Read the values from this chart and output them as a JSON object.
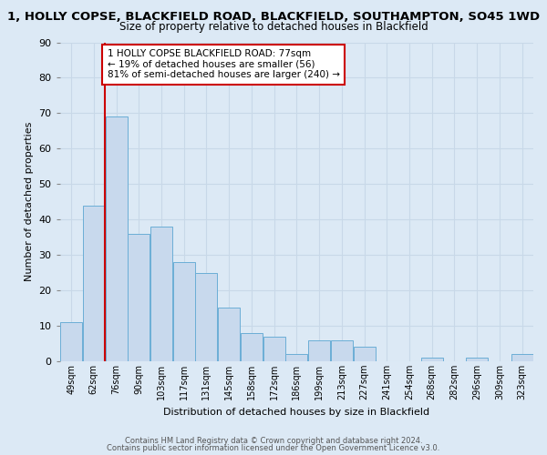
{
  "title": "1, HOLLY COPSE, BLACKFIELD ROAD, BLACKFIELD, SOUTHAMPTON, SO45 1WD",
  "subtitle": "Size of property relative to detached houses in Blackfield",
  "xlabel": "Distribution of detached houses by size in Blackfield",
  "ylabel": "Number of detached properties",
  "bin_labels": [
    "49sqm",
    "62sqm",
    "76sqm",
    "90sqm",
    "103sqm",
    "117sqm",
    "131sqm",
    "145sqm",
    "158sqm",
    "172sqm",
    "186sqm",
    "199sqm",
    "213sqm",
    "227sqm",
    "241sqm",
    "254sqm",
    "268sqm",
    "282sqm",
    "296sqm",
    "309sqm",
    "323sqm"
  ],
  "bar_heights": [
    11,
    44,
    69,
    36,
    38,
    28,
    25,
    15,
    8,
    7,
    2,
    6,
    6,
    4,
    0,
    0,
    1,
    0,
    1,
    0,
    2
  ],
  "bar_color": "#c8d9ed",
  "bar_edge_color": "#6baed6",
  "ylim": [
    0,
    90
  ],
  "yticks": [
    0,
    10,
    20,
    30,
    40,
    50,
    60,
    70,
    80,
    90
  ],
  "red_line_index": 2,
  "annotation_text": "1 HOLLY COPSE BLACKFIELD ROAD: 77sqm\n← 19% of detached houses are smaller (56)\n81% of semi-detached houses are larger (240) →",
  "annotation_box_color": "#ffffff",
  "annotation_box_edge_color": "#cc0000",
  "red_line_color": "#cc0000",
  "grid_color": "#c8d8e8",
  "plot_bg_color": "#dce9f5",
  "fig_bg_color": "#dce9f5",
  "footer_line1": "Contains HM Land Registry data © Crown copyright and database right 2024.",
  "footer_line2": "Contains public sector information licensed under the Open Government Licence v3.0.",
  "title_fontsize": 9.5,
  "subtitle_fontsize": 8.5,
  "axis_label_fontsize": 8,
  "tick_fontsize": 7,
  "annotation_fontsize": 7.5,
  "footer_fontsize": 6
}
